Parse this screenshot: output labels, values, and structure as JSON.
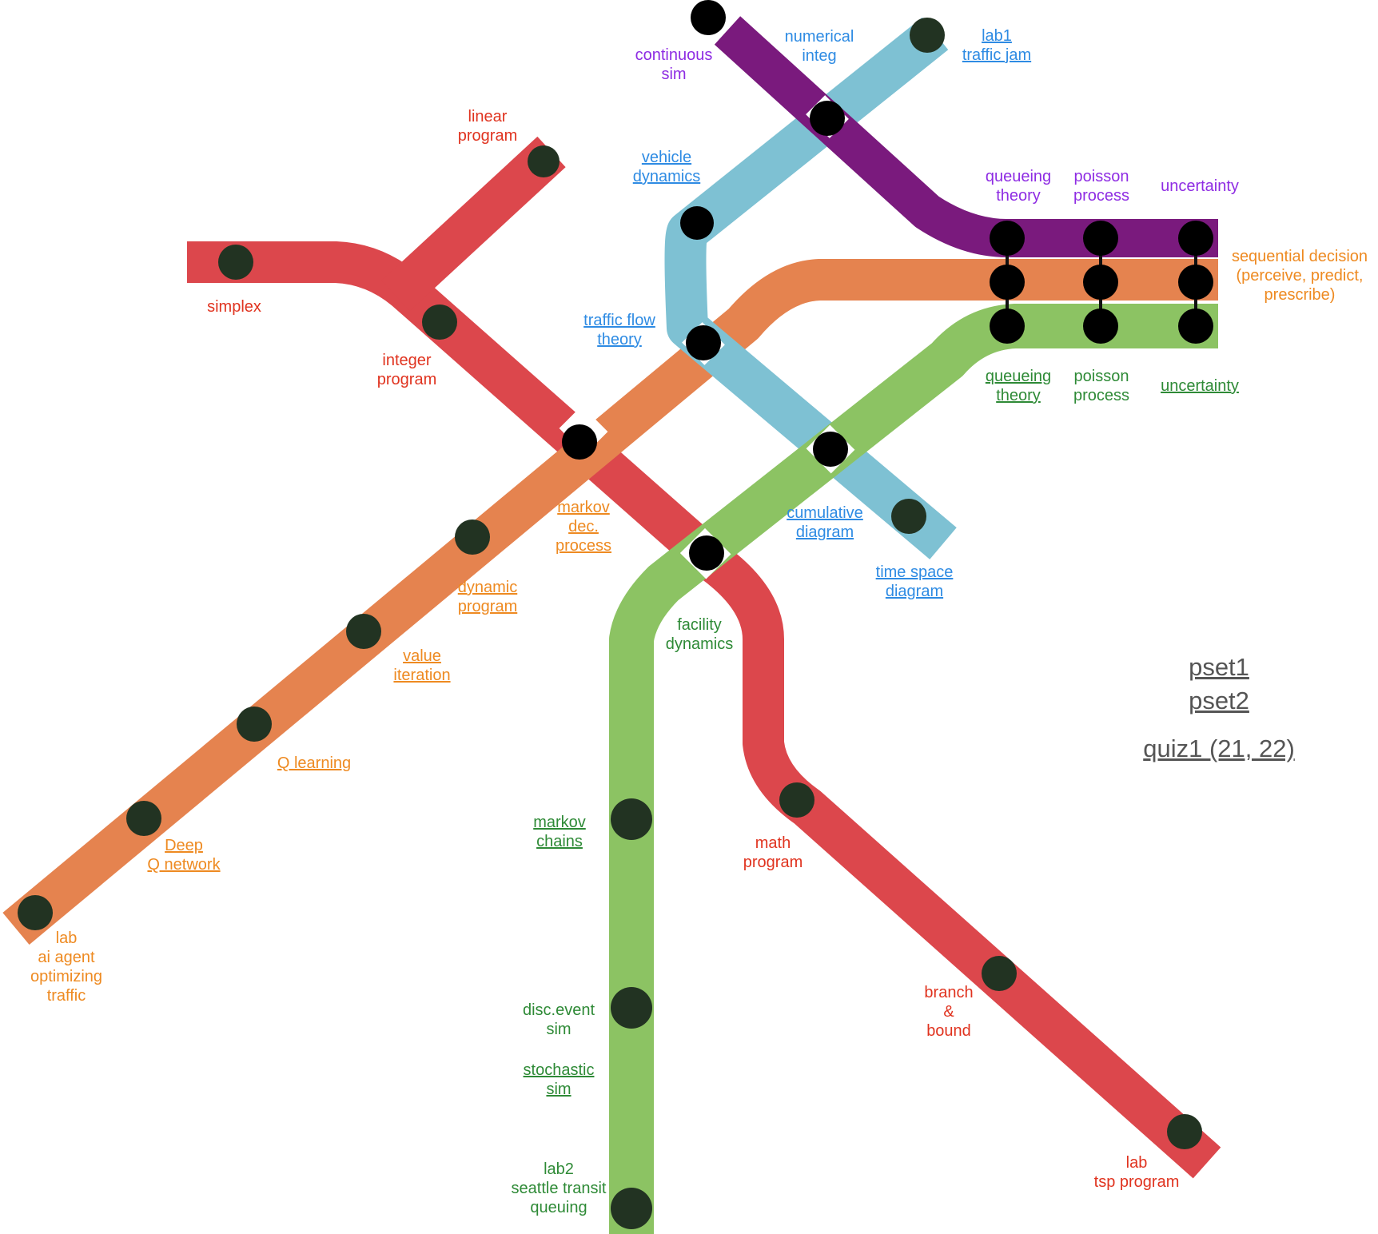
{
  "colors": {
    "red": "#DC474C",
    "orange": "#E5834F",
    "blue": "#7EC1D3",
    "purple": "#7A1A7D",
    "green": "#8CC363",
    "red_text": "#E0331F",
    "orange_text": "#EE8A21",
    "blue_text": "#2E8BE3",
    "purple_text": "#8E2CE3",
    "green_text": "#2E8A36",
    "side_text": "#555555"
  },
  "labels": {
    "continuous_sim": "continuous\nsim",
    "numerical_integ": "numerical\ninteg",
    "lab1_traffic_jam": "lab1\ntraffic jam",
    "linear_program": "linear\nprogram",
    "vehicle_dynamics": "vehicle\ndynamics",
    "queueing_theory_purple": "queueing\ntheory",
    "poisson_process_purple": "poisson\nprocess",
    "uncertainty_purple": "uncertainty",
    "sequential_decision": "sequential decision\n(perceive, predict,\nprescribe)",
    "simplex": "simplex",
    "integer_program": "integer\nprogram",
    "traffic_flow_theory": "traffic flow\ntheory",
    "queueing_theory_green": "queueing\ntheory",
    "poisson_process_green": "poisson\nprocess",
    "uncertainty_green": "uncertainty",
    "markov_dec_process": "markov\ndec.\nprocess",
    "cumulative_diagram": "cumulative\ndiagram",
    "time_space_diagram": "time space\ndiagram",
    "dynamic_program": "dynamic\nprogram",
    "value_iteration": "value\niteration",
    "facility_dynamics": "facility\ndynamics",
    "q_learning": "Q learning",
    "markov_chains": "markov\nchains",
    "math_program": "math\nprogram",
    "deep_q_network": "Deep\nQ network",
    "lab_ai_agent": "lab\nai agent\noptimizing\ntraffic",
    "branch_and_bound": "branch\n&\nbound",
    "disc_event_sim": "disc.event\nsim",
    "stochastic_sim": "stochastic\nsim",
    "lab2_seattle": "lab2\nseattle transit\nqueuing",
    "lab_tsp_program": "lab\ntsp program"
  },
  "side_links": {
    "pset1": "pset1",
    "pset2": "pset2",
    "quiz1": "quiz1 (21, 22)"
  }
}
